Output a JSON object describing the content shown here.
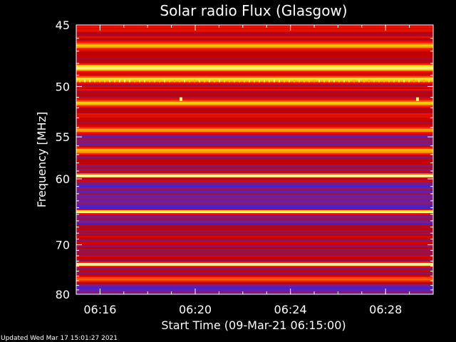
{
  "chart_data": {
    "type": "heatmap",
    "title": "Solar radio Flux (Glasgow)",
    "xlabel": "Start Time (09-Mar-21 06:15:00)",
    "ylabel": "Frequency [MHz]",
    "x_ticks": [
      "06:16",
      "06:20",
      "06:24",
      "06:28"
    ],
    "x_range": [
      "06:15:00",
      "06:30:00"
    ],
    "y_ticks": [
      45,
      50,
      55,
      60,
      70,
      80
    ],
    "y_range": [
      45,
      80
    ],
    "y_scale": "reciprocal",
    "colormap": [
      "#000010",
      "#2020ff",
      "#7a1e8a",
      "#c00000",
      "#ff2000",
      "#ffd000",
      "#ffffc0"
    ],
    "bright_bands_mhz": [
      {
        "freq": 46.5,
        "level": 0.8
      },
      {
        "freq": 48.3,
        "level": 0.9
      },
      {
        "freq": 49.3,
        "level": 0.85
      },
      {
        "freq": 51.5,
        "level": 0.8
      },
      {
        "freq": 54.2,
        "level": 0.75
      },
      {
        "freq": 56.5,
        "level": 0.8
      },
      {
        "freq": 59.5,
        "level": 1.0
      },
      {
        "freq": 64.5,
        "level": 0.95
      },
      {
        "freq": 73.5,
        "level": 1.0
      },
      {
        "freq": 76.5,
        "level": 0.7
      }
    ]
  },
  "footer": {
    "updated": "Updated Wed Mar 17 15:01:27 2021"
  }
}
